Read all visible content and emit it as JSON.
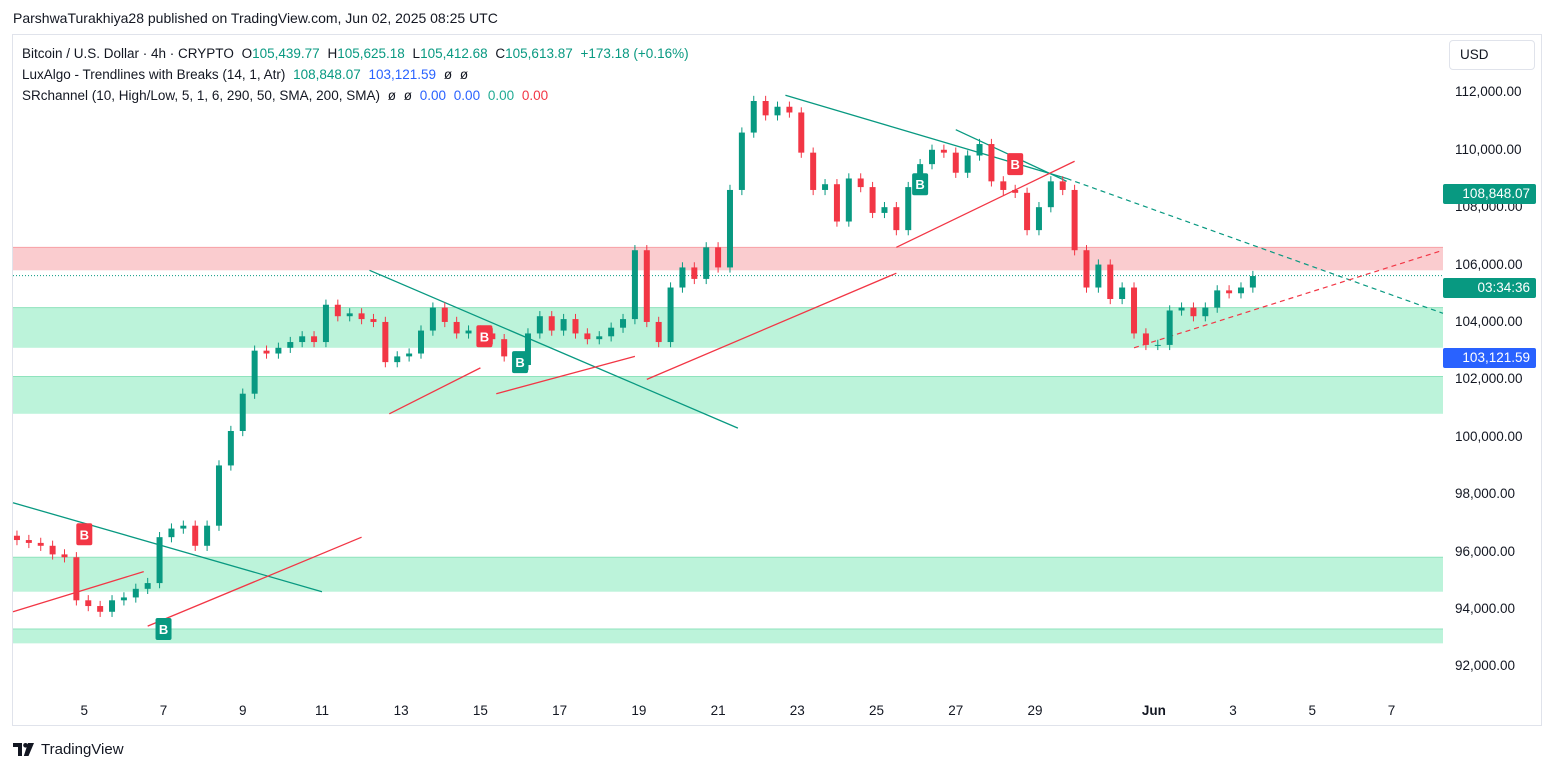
{
  "header": {
    "publisher": "ParshwaTurakhiya28 published on TradingView.com, Jun 02, 2025 08:25 UTC"
  },
  "legend": {
    "main": {
      "symbol": "Bitcoin / U.S. Dollar · 4h · CRYPTO",
      "o_label": "O",
      "o": "105,439.77",
      "h_label": "H",
      "h": "105,625.18",
      "l_label": "L",
      "l": "105,412.68",
      "c_label": "C",
      "c": "105,613.87",
      "change": "+173.18 (+0.16%)"
    },
    "lux": {
      "name": "LuxAlgo - Trendlines with Breaks (14, 1, Atr)",
      "v1": "108,848.07",
      "v2": "103,121.59",
      "v3": "ø",
      "v4": "ø"
    },
    "sr": {
      "name": "SRchannel (10, High/Low, 5, 1, 6, 290, 50, SMA, 200, SMA)",
      "v1": "ø",
      "v2": "ø",
      "v3": "0.00",
      "v4": "0.00",
      "v5": "0.00",
      "v6": "0.00"
    }
  },
  "currency": "USD",
  "price_tags": {
    "upper": "108,848.07",
    "countdown": "03:34:36",
    "lower": "103,121.59"
  },
  "footer": {
    "brand": "TradingView"
  },
  "colors": {
    "up": "#089981",
    "down": "#f23645",
    "trend_down": "#089981",
    "trend_up": "#f23645",
    "resistance_zone": "#f8bbbf",
    "support_zone": "#b8f2d8",
    "tag_green": "#089981",
    "tag_blue": "#2962ff"
  },
  "chart_data": {
    "type": "candlestick",
    "title": "Bitcoin / U.S. Dollar · 4h · CRYPTO",
    "x_ticks": [
      "5",
      "7",
      "9",
      "11",
      "13",
      "15",
      "17",
      "19",
      "21",
      "23",
      "25",
      "27",
      "29",
      "Jun",
      "3",
      "5",
      "7"
    ],
    "x_tick_days": [
      5,
      7,
      9,
      11,
      13,
      15,
      17,
      19,
      21,
      23,
      25,
      27,
      29,
      32,
      34,
      36,
      38
    ],
    "y_ticks": [
      "112,000.00",
      "110,000.00",
      "108,000.00",
      "106,000.00",
      "104,000.00",
      "102,000.00",
      "100,000.00",
      "98,000.00",
      "96,000.00",
      "94,000.00",
      "92,000.00"
    ],
    "y_tick_values": [
      112000,
      110000,
      108000,
      106000,
      104000,
      102000,
      100000,
      98000,
      96000,
      94000,
      92000
    ],
    "ylim": [
      91000,
      114000
    ],
    "xlim": [
      3.2,
      39.3
    ],
    "close_series": [
      [
        3.3,
        96400
      ],
      [
        3.6,
        96300
      ],
      [
        3.9,
        96200
      ],
      [
        4.2,
        95900
      ],
      [
        4.5,
        95800
      ],
      [
        4.8,
        94300
      ],
      [
        5.1,
        94100
      ],
      [
        5.4,
        93900
      ],
      [
        5.7,
        94300
      ],
      [
        6.0,
        94400
      ],
      [
        6.3,
        94700
      ],
      [
        6.6,
        94900
      ],
      [
        6.9,
        96500
      ],
      [
        7.2,
        96800
      ],
      [
        7.5,
        96900
      ],
      [
        7.8,
        96200
      ],
      [
        8.1,
        96900
      ],
      [
        8.4,
        99000
      ],
      [
        8.7,
        100200
      ],
      [
        9.0,
        101500
      ],
      [
        9.3,
        103000
      ],
      [
        9.6,
        102900
      ],
      [
        9.9,
        103100
      ],
      [
        10.2,
        103300
      ],
      [
        10.5,
        103500
      ],
      [
        10.8,
        103300
      ],
      [
        11.1,
        104600
      ],
      [
        11.4,
        104200
      ],
      [
        11.7,
        104300
      ],
      [
        12.0,
        104100
      ],
      [
        12.3,
        104000
      ],
      [
        12.6,
        102600
      ],
      [
        12.9,
        102800
      ],
      [
        13.2,
        102900
      ],
      [
        13.5,
        103700
      ],
      [
        13.8,
        104500
      ],
      [
        14.1,
        104000
      ],
      [
        14.4,
        103600
      ],
      [
        14.7,
        103700
      ],
      [
        15.0,
        103600
      ],
      [
        15.3,
        103400
      ],
      [
        15.6,
        102800
      ],
      [
        15.9,
        102500
      ],
      [
        16.2,
        103600
      ],
      [
        16.5,
        104200
      ],
      [
        16.8,
        103700
      ],
      [
        17.1,
        104100
      ],
      [
        17.4,
        103600
      ],
      [
        17.7,
        103400
      ],
      [
        18.0,
        103500
      ],
      [
        18.3,
        103800
      ],
      [
        18.6,
        104100
      ],
      [
        18.9,
        106500
      ],
      [
        19.2,
        104000
      ],
      [
        19.5,
        103300
      ],
      [
        19.8,
        105200
      ],
      [
        20.1,
        105900
      ],
      [
        20.4,
        105500
      ],
      [
        20.7,
        106600
      ],
      [
        21.0,
        105900
      ],
      [
        21.3,
        108600
      ],
      [
        21.6,
        110600
      ],
      [
        21.9,
        111700
      ],
      [
        22.2,
        111200
      ],
      [
        22.5,
        111500
      ],
      [
        22.8,
        111300
      ],
      [
        23.1,
        109900
      ],
      [
        23.4,
        108600
      ],
      [
        23.7,
        108800
      ],
      [
        24.0,
        107500
      ],
      [
        24.3,
        109000
      ],
      [
        24.6,
        108700
      ],
      [
        24.9,
        107800
      ],
      [
        25.2,
        108000
      ],
      [
        25.5,
        107200
      ],
      [
        25.8,
        108700
      ],
      [
        26.1,
        109500
      ],
      [
        26.4,
        110000
      ],
      [
        26.7,
        109900
      ],
      [
        27.0,
        109200
      ],
      [
        27.3,
        109800
      ],
      [
        27.6,
        110200
      ],
      [
        27.9,
        108900
      ],
      [
        28.2,
        108600
      ],
      [
        28.5,
        108500
      ],
      [
        28.8,
        107200
      ],
      [
        29.1,
        108000
      ],
      [
        29.4,
        108900
      ],
      [
        29.7,
        108600
      ],
      [
        30.0,
        106500
      ],
      [
        30.3,
        105200
      ],
      [
        30.6,
        106000
      ],
      [
        30.9,
        104800
      ],
      [
        31.2,
        105200
      ],
      [
        31.5,
        103600
      ],
      [
        31.8,
        103200
      ],
      [
        32.1,
        103200
      ],
      [
        32.4,
        104400
      ],
      [
        32.7,
        104500
      ],
      [
        33.0,
        104200
      ],
      [
        33.3,
        104500
      ],
      [
        33.6,
        105100
      ],
      [
        33.9,
        105000
      ],
      [
        34.2,
        105200
      ],
      [
        34.5,
        105600
      ]
    ],
    "levels": {
      "resistance_zone": [
        105800,
        106600
      ],
      "support_zones": [
        [
          103100,
          104500
        ],
        [
          100800,
          102100
        ],
        [
          94600,
          95800
        ],
        [
          92800,
          93300
        ]
      ],
      "current_price_line": 105614
    },
    "trendlines_down": [
      [
        [
          3.2,
          97700
        ],
        [
          11.0,
          94600
        ]
      ],
      [
        [
          12.2,
          105800
        ],
        [
          21.5,
          100300
        ]
      ],
      [
        [
          22.7,
          111900
        ],
        [
          29.8,
          109000
        ]
      ],
      [
        [
          27.0,
          110700
        ],
        [
          29.8,
          108900
        ]
      ]
    ],
    "trendlines_up": [
      [
        [
          3.2,
          93900
        ],
        [
          6.5,
          95300
        ]
      ],
      [
        [
          6.6,
          93400
        ],
        [
          12.0,
          96500
        ]
      ],
      [
        [
          12.7,
          100800
        ],
        [
          15.0,
          102400
        ]
      ],
      [
        [
          15.4,
          101500
        ],
        [
          18.9,
          102800
        ]
      ],
      [
        [
          19.2,
          102000
        ],
        [
          25.5,
          105700
        ]
      ],
      [
        [
          25.5,
          106600
        ],
        [
          30.0,
          109600
        ]
      ]
    ],
    "projections": [
      [
        [
          29.8,
          109000
        ],
        [
          39.3,
          104300
        ]
      ],
      [
        [
          31.5,
          103100
        ],
        [
          39.3,
          106500
        ]
      ]
    ],
    "signals": [
      {
        "label": "B",
        "type": "break_down",
        "x": 5.0,
        "y": 96600
      },
      {
        "label": "B",
        "type": "break_up",
        "x": 7.0,
        "y": 93300
      },
      {
        "label": "B",
        "type": "break_down",
        "x": 15.1,
        "y": 103500
      },
      {
        "label": "B",
        "type": "break_up",
        "x": 16.0,
        "y": 102600
      },
      {
        "label": "B",
        "type": "break_up",
        "x": 26.1,
        "y": 108800
      },
      {
        "label": "B",
        "type": "break_down",
        "x": 28.5,
        "y": 109500
      }
    ]
  }
}
